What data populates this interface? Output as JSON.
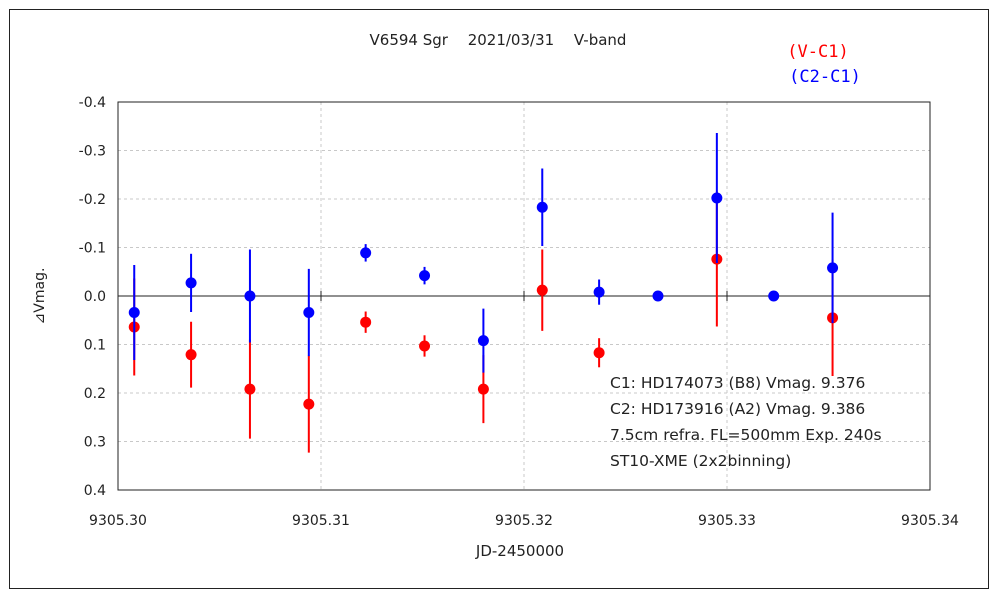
{
  "chart_data": {
    "type": "scatter",
    "title": "V6594 Sgr　 2021/03/31　 V-band",
    "xlabel": "JD-2450000",
    "ylabel": "⊿Vmag.",
    "xlim": [
      9305.3,
      9305.34
    ],
    "ylim": [
      -0.4,
      0.4
    ],
    "y_inverted": true,
    "x_ticks": [
      "9305.30",
      "9305.31",
      "9305.32",
      "9305.33",
      "9305.34"
    ],
    "y_ticks": [
      "-0.4",
      "-0.3",
      "-0.2",
      "-0.1",
      "0.0",
      "0.1",
      "0.2",
      "0.3",
      "0.4"
    ],
    "grid": true,
    "series": [
      {
        "name": "(V-C1)",
        "color": "#ff0000",
        "points": [
          {
            "x": 9305.3008,
            "y": 0.064,
            "err": 0.1
          },
          {
            "x": 9305.3036,
            "y": 0.121,
            "err": 0.068
          },
          {
            "x": 9305.3065,
            "y": 0.192,
            "err": 0.102
          },
          {
            "x": 9305.3094,
            "y": 0.223,
            "err": 0.1
          },
          {
            "x": 9305.3122,
            "y": 0.054,
            "err": 0.022
          },
          {
            "x": 9305.3151,
            "y": 0.103,
            "err": 0.022
          },
          {
            "x": 9305.318,
            "y": 0.192,
            "err": 0.07
          },
          {
            "x": 9305.3209,
            "y": -0.012,
            "err": 0.084
          },
          {
            "x": 9305.3237,
            "y": 0.117,
            "err": 0.03
          },
          {
            "x": 9305.3295,
            "y": -0.076,
            "err": 0.139
          },
          {
            "x": 9305.3352,
            "y": 0.045,
            "err": 0.12
          }
        ]
      },
      {
        "name": "(C2-C1)",
        "color": "#0000ff",
        "points": [
          {
            "x": 9305.3008,
            "y": 0.034,
            "err": 0.098
          },
          {
            "x": 9305.3036,
            "y": -0.027,
            "err": 0.06
          },
          {
            "x": 9305.3065,
            "y": 0.0,
            "err": 0.096
          },
          {
            "x": 9305.3094,
            "y": 0.034,
            "err": 0.09
          },
          {
            "x": 9305.3122,
            "y": -0.089,
            "err": 0.018
          },
          {
            "x": 9305.3151,
            "y": -0.042,
            "err": 0.018
          },
          {
            "x": 9305.318,
            "y": 0.092,
            "err": 0.066
          },
          {
            "x": 9305.3209,
            "y": -0.183,
            "err": 0.08
          },
          {
            "x": 9305.3237,
            "y": -0.008,
            "err": 0.026
          },
          {
            "x": 9305.3266,
            "y": 0.0,
            "err": 0.0
          },
          {
            "x": 9305.3295,
            "y": -0.202,
            "err": 0.134
          },
          {
            "x": 9305.3323,
            "y": 0.0,
            "err": 0.0
          },
          {
            "x": 9305.3352,
            "y": -0.058,
            "err": 0.114
          }
        ]
      }
    ],
    "annotations": [
      "C1: HD174073 (B8) Vmag. 9.376",
      "C2: HD173916 (A2) Vmag. 9.386",
      "7.5cm refra. FL=500mm  Exp. 240s",
      "ST10-XME (2x2binning)"
    ],
    "legend_position": "top-right"
  }
}
